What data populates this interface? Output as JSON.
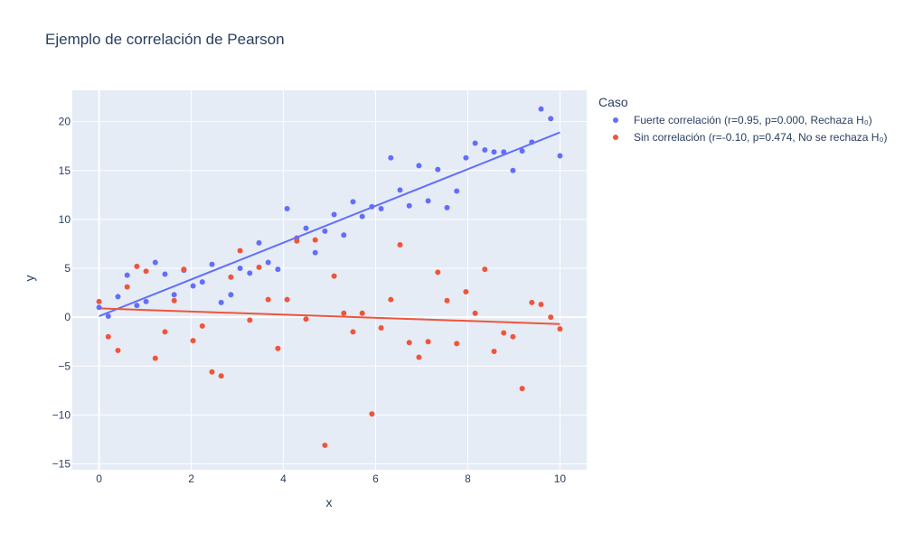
{
  "chart_data": {
    "type": "scatter",
    "title": "Ejemplo de correlación de Pearson",
    "xlabel": "x",
    "ylabel": "y",
    "xlim": [
      -0.58,
      10.58
    ],
    "ylim": [
      -15.6,
      23.2
    ],
    "xticks": [
      0,
      2,
      4,
      6,
      8,
      10
    ],
    "yticks": [
      -15,
      -10,
      -5,
      0,
      5,
      10,
      15,
      20
    ],
    "ytick_labels": [
      "−15",
      "−10",
      "−5",
      "0",
      "5",
      "10",
      "15",
      "20"
    ],
    "grid": true,
    "legend_title": "Caso",
    "legend_position": "right",
    "background": "#e5ecf6",
    "series": [
      {
        "name": "Fuerte correlación (r=0.95, p=0.000, Rechaza H₀)",
        "color": "#636efa",
        "x": [
          0,
          0.2,
          0.41,
          0.61,
          0.82,
          1.02,
          1.22,
          1.43,
          1.63,
          1.84,
          2.04,
          2.24,
          2.45,
          2.65,
          2.86,
          3.06,
          3.27,
          3.47,
          3.67,
          3.88,
          4.08,
          4.29,
          4.49,
          4.69,
          4.9,
          5.1,
          5.31,
          5.51,
          5.71,
          5.92,
          6.12,
          6.33,
          6.53,
          6.73,
          6.94,
          7.14,
          7.35,
          7.55,
          7.76,
          7.96,
          8.16,
          8.37,
          8.57,
          8.78,
          8.98,
          9.18,
          9.39,
          9.59,
          9.8,
          10
        ],
        "y": [
          1.0,
          0.1,
          2.1,
          4.3,
          1.2,
          1.6,
          5.6,
          4.4,
          2.3,
          4.8,
          3.2,
          3.6,
          5.4,
          1.5,
          2.3,
          5.0,
          4.5,
          7.6,
          5.6,
          4.9,
          11.1,
          8.1,
          9.1,
          6.6,
          8.8,
          10.5,
          8.4,
          11.8,
          10.3,
          11.3,
          11.1,
          16.3,
          13.0,
          11.4,
          15.5,
          11.9,
          15.1,
          11.2,
          12.9,
          16.3,
          17.8,
          17.1,
          16.9,
          16.9,
          15.0,
          17.0,
          17.9,
          21.3,
          20.3,
          16.5
        ],
        "trend": [
          0.1,
          18.9
        ]
      },
      {
        "name": "Sin correlación (r=-0.10, p=0.474, No se rechaza H₀)",
        "color": "#ef553b",
        "x": [
          0,
          0.2,
          0.41,
          0.61,
          0.82,
          1.02,
          1.22,
          1.43,
          1.63,
          1.84,
          2.04,
          2.24,
          2.45,
          2.65,
          2.86,
          3.06,
          3.27,
          3.47,
          3.67,
          3.88,
          4.08,
          4.29,
          4.49,
          4.69,
          4.9,
          5.1,
          5.31,
          5.51,
          5.71,
          5.92,
          6.12,
          6.33,
          6.53,
          6.73,
          6.94,
          7.14,
          7.35,
          7.55,
          7.76,
          7.96,
          8.16,
          8.37,
          8.57,
          8.78,
          8.98,
          9.18,
          9.39,
          9.59,
          9.8,
          10
        ],
        "y": [
          1.6,
          -2.0,
          -3.4,
          3.1,
          5.2,
          4.7,
          -4.2,
          -1.5,
          1.7,
          4.9,
          -2.4,
          -0.9,
          -5.6,
          -6.0,
          4.1,
          6.8,
          -0.3,
          5.1,
          1.8,
          -3.2,
          1.8,
          7.8,
          -0.2,
          7.9,
          -13.1,
          4.2,
          0.4,
          -1.5,
          0.4,
          -9.9,
          -1.1,
          1.8,
          7.4,
          -2.6,
          -4.1,
          -2.5,
          4.6,
          1.7,
          -2.7,
          2.6,
          0.4,
          4.9,
          -3.5,
          -1.6,
          -2.0,
          -7.3,
          1.5,
          1.3,
          0.0,
          -1.2
        ],
        "trend": [
          0.9,
          -0.7
        ]
      }
    ]
  }
}
